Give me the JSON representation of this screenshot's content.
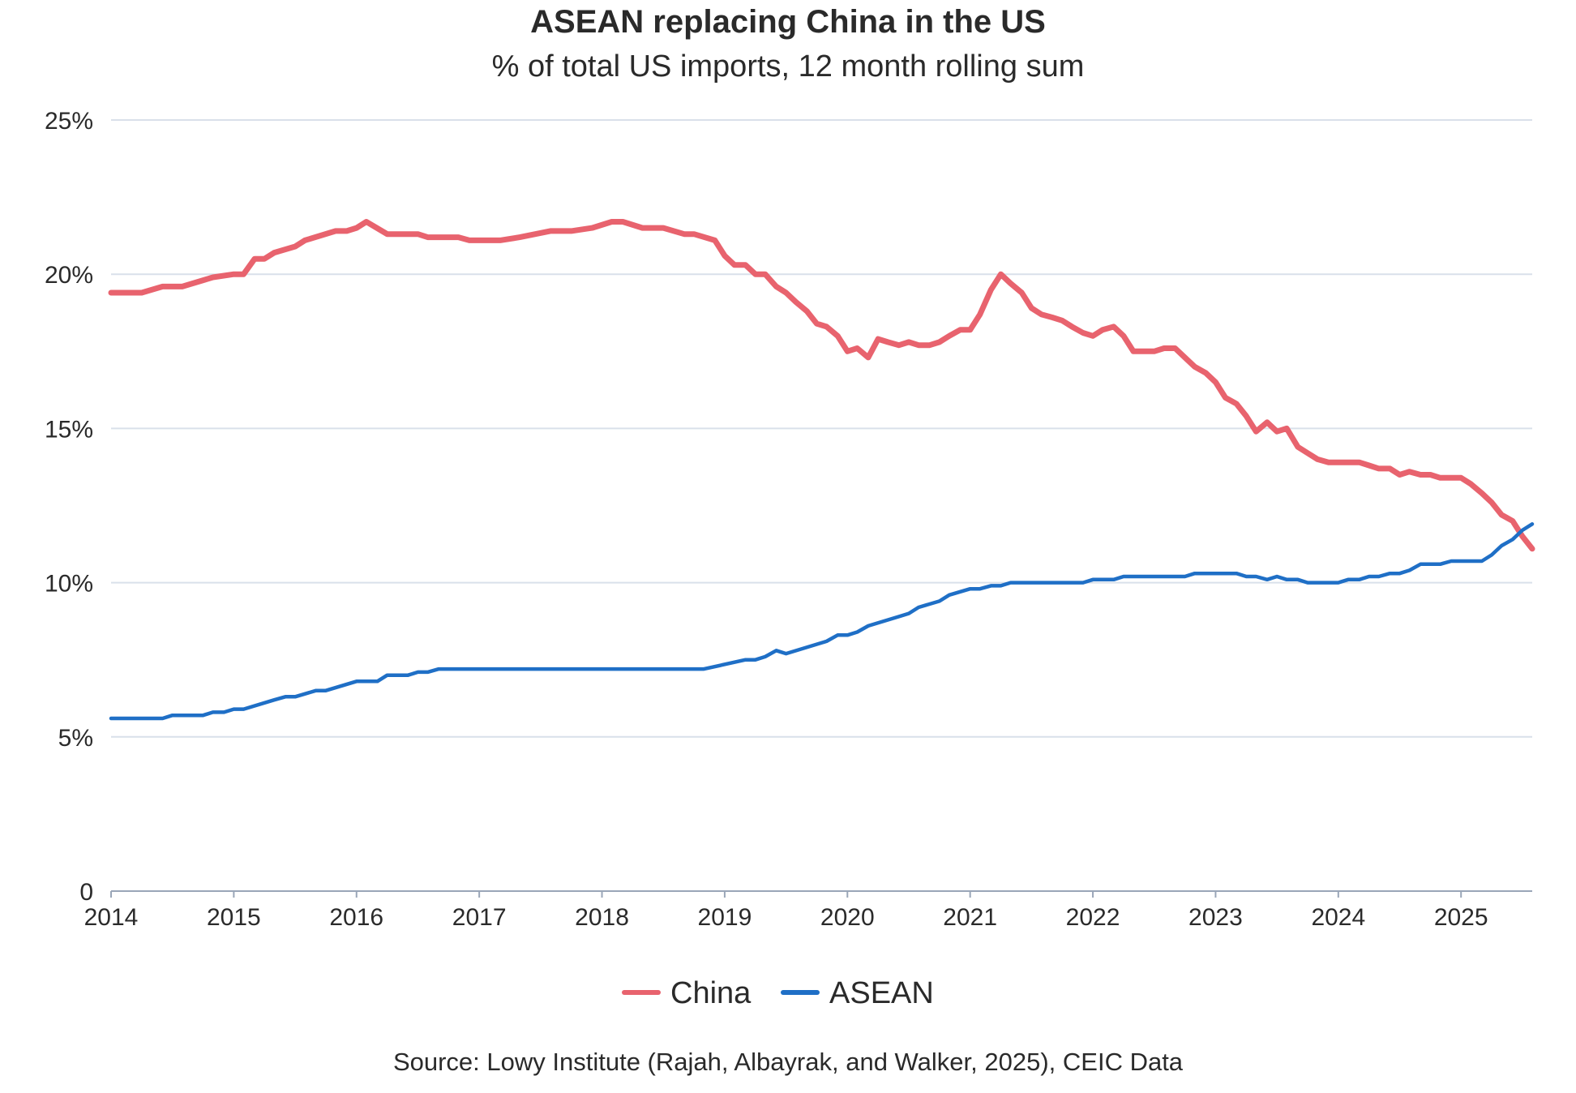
{
  "chart_data": {
    "type": "line",
    "title": "ASEAN replacing China in the US",
    "subtitle": "% of total US imports, 12 month rolling sum",
    "source": "Source: Lowy Institute (Rajah, Albayrak, and Walker, 2025), CEIC Data",
    "ylim": [
      0,
      25
    ],
    "xlim": [
      2014,
      2025.58
    ],
    "yticks": [
      0,
      5,
      10,
      15,
      20,
      25
    ],
    "ytick_labels": [
      "0",
      "5%",
      "10%",
      "15%",
      "20%",
      "25%"
    ],
    "xticks": [
      2014,
      2015,
      2016,
      2017,
      2018,
      2019,
      2020,
      2021,
      2022,
      2023,
      2024,
      2025
    ],
    "xtick_labels": [
      "2014",
      "2015",
      "2016",
      "2017",
      "2018",
      "2019",
      "2020",
      "2021",
      "2022",
      "2023",
      "2024",
      "2025"
    ],
    "grid": true,
    "legend_position": "bottom-center",
    "series": [
      {
        "name": "China",
        "color": "#e8636e",
        "points": [
          [
            2014.0,
            19.4
          ],
          [
            2014.25,
            19.4
          ],
          [
            2014.42,
            19.6
          ],
          [
            2014.58,
            19.6
          ],
          [
            2014.83,
            19.9
          ],
          [
            2015.0,
            20.0
          ],
          [
            2015.08,
            20.0
          ],
          [
            2015.17,
            20.5
          ],
          [
            2015.25,
            20.5
          ],
          [
            2015.33,
            20.7
          ],
          [
            2015.5,
            20.9
          ],
          [
            2015.58,
            21.1
          ],
          [
            2015.83,
            21.4
          ],
          [
            2015.92,
            21.4
          ],
          [
            2016.0,
            21.5
          ],
          [
            2016.08,
            21.7
          ],
          [
            2016.25,
            21.3
          ],
          [
            2016.5,
            21.3
          ],
          [
            2016.58,
            21.2
          ],
          [
            2016.83,
            21.2
          ],
          [
            2016.92,
            21.1
          ],
          [
            2017.17,
            21.1
          ],
          [
            2017.33,
            21.2
          ],
          [
            2017.58,
            21.4
          ],
          [
            2017.75,
            21.4
          ],
          [
            2017.92,
            21.5
          ],
          [
            2018.08,
            21.7
          ],
          [
            2018.17,
            21.7
          ],
          [
            2018.33,
            21.5
          ],
          [
            2018.5,
            21.5
          ],
          [
            2018.67,
            21.3
          ],
          [
            2018.75,
            21.3
          ],
          [
            2018.92,
            21.1
          ],
          [
            2019.0,
            20.6
          ],
          [
            2019.08,
            20.3
          ],
          [
            2019.17,
            20.3
          ],
          [
            2019.25,
            20.0
          ],
          [
            2019.33,
            20.0
          ],
          [
            2019.42,
            19.6
          ],
          [
            2019.5,
            19.4
          ],
          [
            2019.58,
            19.1
          ],
          [
            2019.67,
            18.8
          ],
          [
            2019.75,
            18.4
          ],
          [
            2019.83,
            18.3
          ],
          [
            2019.92,
            18.0
          ],
          [
            2020.0,
            17.5
          ],
          [
            2020.08,
            17.6
          ],
          [
            2020.17,
            17.3
          ],
          [
            2020.25,
            17.9
          ],
          [
            2020.33,
            17.8
          ],
          [
            2020.42,
            17.7
          ],
          [
            2020.5,
            17.8
          ],
          [
            2020.58,
            17.7
          ],
          [
            2020.67,
            17.7
          ],
          [
            2020.75,
            17.8
          ],
          [
            2020.83,
            18.0
          ],
          [
            2020.92,
            18.2
          ],
          [
            2021.0,
            18.2
          ],
          [
            2021.08,
            18.7
          ],
          [
            2021.17,
            19.5
          ],
          [
            2021.25,
            20.0
          ],
          [
            2021.33,
            19.7
          ],
          [
            2021.42,
            19.4
          ],
          [
            2021.5,
            18.9
          ],
          [
            2021.58,
            18.7
          ],
          [
            2021.67,
            18.6
          ],
          [
            2021.75,
            18.5
          ],
          [
            2021.83,
            18.3
          ],
          [
            2021.92,
            18.1
          ],
          [
            2022.0,
            18.0
          ],
          [
            2022.08,
            18.2
          ],
          [
            2022.17,
            18.3
          ],
          [
            2022.25,
            18.0
          ],
          [
            2022.33,
            17.5
          ],
          [
            2022.42,
            17.5
          ],
          [
            2022.5,
            17.5
          ],
          [
            2022.58,
            17.6
          ],
          [
            2022.67,
            17.6
          ],
          [
            2022.75,
            17.3
          ],
          [
            2022.83,
            17.0
          ],
          [
            2022.92,
            16.8
          ],
          [
            2023.0,
            16.5
          ],
          [
            2023.08,
            16.0
          ],
          [
            2023.17,
            15.8
          ],
          [
            2023.25,
            15.4
          ],
          [
            2023.33,
            14.9
          ],
          [
            2023.42,
            15.2
          ],
          [
            2023.5,
            14.9
          ],
          [
            2023.58,
            15.0
          ],
          [
            2023.67,
            14.4
          ],
          [
            2023.75,
            14.2
          ],
          [
            2023.83,
            14.0
          ],
          [
            2023.92,
            13.9
          ],
          [
            2024.0,
            13.9
          ],
          [
            2024.17,
            13.9
          ],
          [
            2024.25,
            13.8
          ],
          [
            2024.33,
            13.7
          ],
          [
            2024.42,
            13.7
          ],
          [
            2024.5,
            13.5
          ],
          [
            2024.58,
            13.6
          ],
          [
            2024.67,
            13.5
          ],
          [
            2024.75,
            13.5
          ],
          [
            2024.83,
            13.4
          ],
          [
            2024.92,
            13.4
          ],
          [
            2025.0,
            13.4
          ],
          [
            2025.08,
            13.2
          ],
          [
            2025.17,
            12.9
          ],
          [
            2025.25,
            12.6
          ],
          [
            2025.33,
            12.2
          ],
          [
            2025.42,
            12.0
          ],
          [
            2025.5,
            11.5
          ],
          [
            2025.58,
            11.1
          ]
        ]
      },
      {
        "name": "ASEAN",
        "color": "#1f6fc6",
        "points": [
          [
            2014.0,
            5.6
          ],
          [
            2014.42,
            5.6
          ],
          [
            2014.5,
            5.7
          ],
          [
            2014.75,
            5.7
          ],
          [
            2014.83,
            5.8
          ],
          [
            2014.92,
            5.8
          ],
          [
            2015.0,
            5.9
          ],
          [
            2015.08,
            5.9
          ],
          [
            2015.33,
            6.2
          ],
          [
            2015.42,
            6.3
          ],
          [
            2015.5,
            6.3
          ],
          [
            2015.67,
            6.5
          ],
          [
            2015.75,
            6.5
          ],
          [
            2016.0,
            6.8
          ],
          [
            2016.17,
            6.8
          ],
          [
            2016.25,
            7.0
          ],
          [
            2016.42,
            7.0
          ],
          [
            2016.5,
            7.1
          ],
          [
            2016.58,
            7.1
          ],
          [
            2016.67,
            7.2
          ],
          [
            2018.83,
            7.2
          ],
          [
            2019.17,
            7.5
          ],
          [
            2019.25,
            7.5
          ],
          [
            2019.33,
            7.6
          ],
          [
            2019.42,
            7.8
          ],
          [
            2019.5,
            7.7
          ],
          [
            2019.83,
            8.1
          ],
          [
            2019.92,
            8.3
          ],
          [
            2020.0,
            8.3
          ],
          [
            2020.08,
            8.4
          ],
          [
            2020.17,
            8.6
          ],
          [
            2020.42,
            8.9
          ],
          [
            2020.5,
            9.0
          ],
          [
            2020.58,
            9.2
          ],
          [
            2020.75,
            9.4
          ],
          [
            2020.83,
            9.6
          ],
          [
            2021.0,
            9.8
          ],
          [
            2021.08,
            9.8
          ],
          [
            2021.17,
            9.9
          ],
          [
            2021.25,
            9.9
          ],
          [
            2021.33,
            10.0
          ],
          [
            2021.92,
            10.0
          ],
          [
            2022.0,
            10.1
          ],
          [
            2022.17,
            10.1
          ],
          [
            2022.25,
            10.2
          ],
          [
            2022.75,
            10.2
          ],
          [
            2022.83,
            10.3
          ],
          [
            2023.17,
            10.3
          ],
          [
            2023.25,
            10.2
          ],
          [
            2023.33,
            10.2
          ],
          [
            2023.42,
            10.1
          ],
          [
            2023.5,
            10.2
          ],
          [
            2023.58,
            10.1
          ],
          [
            2023.67,
            10.1
          ],
          [
            2023.75,
            10.0
          ],
          [
            2024.0,
            10.0
          ],
          [
            2024.08,
            10.1
          ],
          [
            2024.17,
            10.1
          ],
          [
            2024.25,
            10.2
          ],
          [
            2024.33,
            10.2
          ],
          [
            2024.42,
            10.3
          ],
          [
            2024.5,
            10.3
          ],
          [
            2024.58,
            10.4
          ],
          [
            2024.67,
            10.6
          ],
          [
            2024.83,
            10.6
          ],
          [
            2024.92,
            10.7
          ],
          [
            2025.08,
            10.7
          ],
          [
            2025.17,
            10.7
          ],
          [
            2025.25,
            10.9
          ],
          [
            2025.33,
            11.2
          ],
          [
            2025.42,
            11.4
          ],
          [
            2025.5,
            11.7
          ],
          [
            2025.58,
            11.9
          ]
        ]
      }
    ]
  }
}
